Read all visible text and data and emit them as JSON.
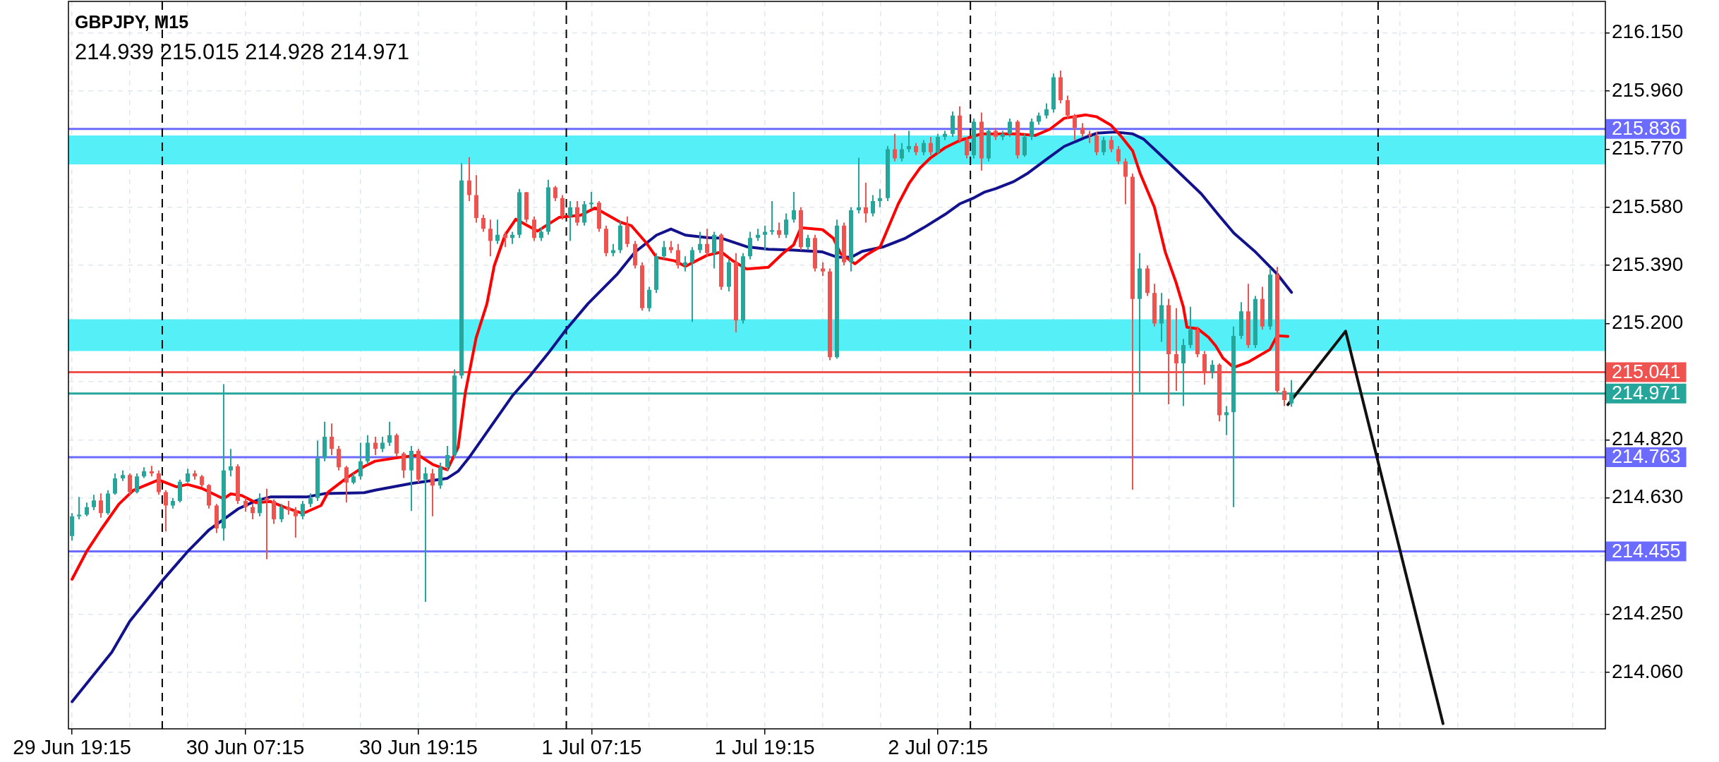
{
  "chart_data": {
    "type": "candlestick",
    "title": "GBPJPY, M15",
    "subtitle": "214.939 215.015 214.928 214.971",
    "x": [
      "--06-29T19:15",
      "--06-29T19:45",
      "--06-29T20:15",
      "--06-29T20:45",
      "--06-29T21:15",
      "--06-29T21:45",
      "--06-29T22:15",
      "--06-29T22:45",
      "--06-29T23:15",
      "--06-29T23:45",
      "--06-30T00:15",
      "--06-30T00:45",
      "--06-30T01:15",
      "--06-30T01:45",
      "--06-30T02:15",
      "--06-30T02:45",
      "--06-30T03:15",
      "--06-30T03:45",
      "--06-30T04:15",
      "--06-30T04:45",
      "--06-30T05:15",
      "--06-30T05:45",
      "--06-30T06:15",
      "--06-30T06:45",
      "--06-30T07:15",
      "--06-30T07:45",
      "--06-30T08:15",
      "--06-30T08:45",
      "--06-30T09:15",
      "--06-30T09:45",
      "--06-30T10:15",
      "--06-30T10:45",
      "--06-30T11:15",
      "--06-30T11:45",
      "--06-30T12:15",
      "--06-30T12:45",
      "--06-30T13:15",
      "--06-30T13:45",
      "--06-30T14:15",
      "--06-30T14:45",
      "--06-30T15:15",
      "--06-30T15:45",
      "--06-30T16:15",
      "--06-30T16:45",
      "--06-30T17:15",
      "--06-30T17:45",
      "--06-30T18:15",
      "--06-30T18:45",
      "--06-30T19:15",
      "--06-30T19:45",
      "--06-30T20:15",
      "--06-30T20:45",
      "--06-30T21:15",
      "--06-30T21:45",
      "--06-30T22:15",
      "--06-30T22:45",
      "--06-30T23:15",
      "--06-30T23:45",
      "--07-01T00:15",
      "--07-01T00:45",
      "--07-01T01:15",
      "--07-01T01:45",
      "--07-01T02:15",
      "--07-01T02:45",
      "--07-01T03:15",
      "--07-01T03:45",
      "--07-01T04:15",
      "--07-01T04:45",
      "--07-01T05:15",
      "--07-01T05:45",
      "--07-01T06:15",
      "--07-01T06:45",
      "--07-01T07:15",
      "--07-01T07:45",
      "--07-01T08:15",
      "--07-01T08:45",
      "--07-01T09:15",
      "--07-01T09:45",
      "--07-01T10:15",
      "--07-01T10:45",
      "--07-01T11:15",
      "--07-01T11:45",
      "--07-01T12:15",
      "--07-01T12:45",
      "--07-01T13:15",
      "--07-01T13:45",
      "--07-01T14:15",
      "--07-01T14:45",
      "--07-01T15:15",
      "--07-01T15:45",
      "--07-01T16:15",
      "--07-01T16:45",
      "--07-01T17:15",
      "--07-01T17:45",
      "--07-01T18:15",
      "--07-01T18:45",
      "--07-01T19:15",
      "--07-01T19:45",
      "--07-01T20:15",
      "--07-01T20:45",
      "--07-01T21:15",
      "--07-01T21:45",
      "--07-01T22:15",
      "--07-01T22:45",
      "--07-01T23:15",
      "--07-01T23:45",
      "--07-02T00:15",
      "--07-02T00:45",
      "--07-02T01:15",
      "--07-02T01:45",
      "--07-02T02:15",
      "--07-02T02:45",
      "--07-02T03:15",
      "--07-02T03:45",
      "--07-02T04:15",
      "--07-02T04:45",
      "--07-02T05:15",
      "--07-02T05:45",
      "--07-02T06:15",
      "--07-02T06:45",
      "--07-02T07:15",
      "--07-02T07:45",
      "--07-02T08:15",
      "--07-02T08:45",
      "--07-02T09:15",
      "--07-02T09:45",
      "--07-02T10:15",
      "--07-02T10:45",
      "--07-02T11:15",
      "--07-02T11:45",
      "--07-02T12:15",
      "--07-02T12:45",
      "--07-02T13:15",
      "--07-02T13:45",
      "--07-02T14:15",
      "--07-02T14:45",
      "--07-02T15:15",
      "--07-02T15:45",
      "--07-02T16:15",
      "--07-02T16:45",
      "--07-02T17:15",
      "--07-02T17:45",
      "--07-02T18:15",
      "--07-02T18:45",
      "--07-02T19:15",
      "--07-02T19:45",
      "--07-02T20:15",
      "--07-02T20:45",
      "--07-02T21:15",
      "--07-02T21:45",
      "--07-02T22:15",
      "--07-02T22:45",
      "--07-02T23:15",
      "--07-02T23:45",
      "--07-03T00:15",
      "--07-03T00:45",
      "--07-03T01:15",
      "--07-03T01:45",
      "--07-03T02:15",
      "--07-03T02:45",
      "--07-03T03:15",
      "--07-03T03:45",
      "--07-03T04:15",
      "--07-03T04:45",
      "--07-03T05:15",
      "--07-03T05:45",
      "--07-03T06:15",
      "--07-03T06:45",
      "--07-03T07:15",
      "--07-03T07:45"
    ],
    "ohlc": [
      [
        214.505,
        214.58,
        214.49,
        214.57
      ],
      [
        214.57,
        214.633,
        214.56,
        214.575
      ],
      [
        214.575,
        214.615,
        214.57,
        214.6
      ],
      [
        214.6,
        214.64,
        214.59,
        214.622
      ],
      [
        214.622,
        214.645,
        214.565,
        214.58
      ],
      [
        214.58,
        214.655,
        214.575,
        214.644
      ],
      [
        214.644,
        214.71,
        214.64,
        214.694
      ],
      [
        214.694,
        214.72,
        214.685,
        214.705
      ],
      [
        214.705,
        214.71,
        214.64,
        214.649
      ],
      [
        214.649,
        214.71,
        214.645,
        214.7
      ],
      [
        214.7,
        214.73,
        214.695,
        214.717
      ],
      [
        214.717,
        214.735,
        214.7,
        214.71
      ],
      [
        214.71,
        214.72,
        214.64,
        214.649
      ],
      [
        214.649,
        214.655,
        214.521,
        214.605
      ],
      [
        214.605,
        214.63,
        214.595,
        214.62
      ],
      [
        214.62,
        214.69,
        214.615,
        214.683
      ],
      [
        214.683,
        214.725,
        214.68,
        214.71
      ],
      [
        214.71,
        214.72,
        214.69,
        214.7
      ],
      [
        214.7,
        214.705,
        214.665,
        214.672
      ],
      [
        214.672,
        214.675,
        214.595,
        214.605
      ],
      [
        214.605,
        214.61,
        214.515,
        214.53
      ],
      [
        214.53,
        215.002,
        214.49,
        214.72
      ],
      [
        214.72,
        214.79,
        214.7,
        214.733
      ],
      [
        214.733,
        214.74,
        214.61,
        214.62
      ],
      [
        214.62,
        214.63,
        214.585,
        214.6
      ],
      [
        214.6,
        214.61,
        214.56,
        214.58
      ],
      [
        214.58,
        214.645,
        214.57,
        214.63
      ],
      [
        214.63,
        214.66,
        214.43,
        214.62
      ],
      [
        214.62,
        214.625,
        214.545,
        214.56
      ],
      [
        214.56,
        214.61,
        214.55,
        214.6
      ],
      [
        214.6,
        214.62,
        214.575,
        214.59
      ],
      [
        214.59,
        214.6,
        214.5,
        214.57
      ],
      [
        214.57,
        214.62,
        214.56,
        214.61
      ],
      [
        214.61,
        214.645,
        214.6,
        214.63
      ],
      [
        214.63,
        214.817,
        214.62,
        214.76
      ],
      [
        214.76,
        214.879,
        214.75,
        214.83
      ],
      [
        214.83,
        214.873,
        214.77,
        214.79
      ],
      [
        214.79,
        214.8,
        214.72,
        214.73
      ],
      [
        214.73,
        214.735,
        214.615,
        214.68
      ],
      [
        214.68,
        214.71,
        214.675,
        214.7
      ],
      [
        214.7,
        214.81,
        214.69,
        214.75
      ],
      [
        214.75,
        214.835,
        214.74,
        214.81
      ],
      [
        214.81,
        214.83,
        214.77,
        214.79
      ],
      [
        214.79,
        214.83,
        214.78,
        214.81
      ],
      [
        214.81,
        214.879,
        214.8,
        214.835
      ],
      [
        214.835,
        214.84,
        214.765,
        214.775
      ],
      [
        214.775,
        214.78,
        214.695,
        214.72
      ],
      [
        214.72,
        214.8,
        214.587,
        214.784
      ],
      [
        214.784,
        214.79,
        214.68,
        214.69
      ],
      [
        214.69,
        214.73,
        214.29,
        214.71
      ],
      [
        214.71,
        214.725,
        214.57,
        214.67
      ],
      [
        214.67,
        214.745,
        214.66,
        214.73
      ],
      [
        214.73,
        214.8,
        214.72,
        214.77
      ],
      [
        214.77,
        215.05,
        214.76,
        215.03
      ],
      [
        215.03,
        215.724,
        215.02,
        215.668
      ],
      [
        215.668,
        215.744,
        215.6,
        215.62
      ],
      [
        215.62,
        215.685,
        215.53,
        215.545
      ],
      [
        215.545,
        215.555,
        215.5,
        215.51
      ],
      [
        215.51,
        215.54,
        215.42,
        215.47
      ],
      [
        215.47,
        215.54,
        215.46,
        215.49
      ],
      [
        215.49,
        215.5,
        215.45,
        215.48
      ],
      [
        215.48,
        215.5,
        215.46,
        215.49
      ],
      [
        215.49,
        215.64,
        215.48,
        215.629
      ],
      [
        215.629,
        215.63,
        215.53,
        215.54
      ],
      [
        215.54,
        215.55,
        215.47,
        215.48
      ],
      [
        215.48,
        215.515,
        215.47,
        215.5
      ],
      [
        215.5,
        215.67,
        215.49,
        215.645
      ],
      [
        215.645,
        215.65,
        215.6,
        215.61
      ],
      [
        215.61,
        215.62,
        215.54,
        215.55
      ],
      [
        215.55,
        215.6,
        215.47,
        215.58
      ],
      [
        215.58,
        215.6,
        215.52,
        215.53
      ],
      [
        215.53,
        215.6,
        215.52,
        215.59
      ],
      [
        215.59,
        215.63,
        215.575,
        215.595
      ],
      [
        215.595,
        215.6,
        215.5,
        215.51
      ],
      [
        215.51,
        215.52,
        215.42,
        215.43
      ],
      [
        215.43,
        215.46,
        215.42,
        215.44
      ],
      [
        215.44,
        215.535,
        215.43,
        215.52
      ],
      [
        215.52,
        215.55,
        215.45,
        215.46
      ],
      [
        215.46,
        215.47,
        215.38,
        215.39
      ],
      [
        215.39,
        215.4,
        215.242,
        215.25
      ],
      [
        215.25,
        215.32,
        215.24,
        215.31
      ],
      [
        215.31,
        215.43,
        215.3,
        215.42
      ],
      [
        215.42,
        215.47,
        215.41,
        215.45
      ],
      [
        215.45,
        215.47,
        215.43,
        215.44
      ],
      [
        215.44,
        215.46,
        215.38,
        215.39
      ],
      [
        215.39,
        215.42,
        215.37,
        215.4
      ],
      [
        215.4,
        215.45,
        215.205,
        215.44
      ],
      [
        215.44,
        215.5,
        215.43,
        215.46
      ],
      [
        215.46,
        215.51,
        215.42,
        215.43
      ],
      [
        215.43,
        215.5,
        215.38,
        215.49
      ],
      [
        215.49,
        215.495,
        215.31,
        215.32
      ],
      [
        215.32,
        215.41,
        215.305,
        215.4
      ],
      [
        215.4,
        215.43,
        215.171,
        215.21
      ],
      [
        215.21,
        215.43,
        215.2,
        215.42
      ],
      [
        215.42,
        215.5,
        215.41,
        215.48
      ],
      [
        215.48,
        215.51,
        215.47,
        215.49
      ],
      [
        215.49,
        215.52,
        215.44,
        215.5
      ],
      [
        215.5,
        215.6,
        215.49,
        215.505
      ],
      [
        215.505,
        215.53,
        215.48,
        215.49
      ],
      [
        215.49,
        215.56,
        215.48,
        215.54
      ],
      [
        215.54,
        215.63,
        215.53,
        215.57
      ],
      [
        215.57,
        215.58,
        215.44,
        215.45
      ],
      [
        215.45,
        215.49,
        215.44,
        215.48
      ],
      [
        215.48,
        215.49,
        215.37,
        215.38
      ],
      [
        215.38,
        215.4,
        215.355,
        215.37
      ],
      [
        215.37,
        215.38,
        215.08,
        215.09
      ],
      [
        215.09,
        215.54,
        215.085,
        215.52
      ],
      [
        215.52,
        215.53,
        215.39,
        215.4
      ],
      [
        215.4,
        215.58,
        215.37,
        215.57
      ],
      [
        215.57,
        215.742,
        215.56,
        215.58
      ],
      [
        215.58,
        215.66,
        215.53,
        215.56
      ],
      [
        215.56,
        215.62,
        215.55,
        215.6
      ],
      [
        215.6,
        215.64,
        215.58,
        215.61
      ],
      [
        215.61,
        215.78,
        215.6,
        215.77
      ],
      [
        215.77,
        215.82,
        215.73,
        215.74
      ],
      [
        215.74,
        215.79,
        215.73,
        215.77
      ],
      [
        215.77,
        215.83,
        215.76,
        215.78
      ],
      [
        215.78,
        215.79,
        215.75,
        215.76
      ],
      [
        215.76,
        215.8,
        215.75,
        215.79
      ],
      [
        215.79,
        215.81,
        215.75,
        215.76
      ],
      [
        215.76,
        215.82,
        215.755,
        215.81
      ],
      [
        215.81,
        215.83,
        215.8,
        215.82
      ],
      [
        215.82,
        215.893,
        215.81,
        215.88
      ],
      [
        215.88,
        215.91,
        215.79,
        215.8
      ],
      [
        215.8,
        215.81,
        215.74,
        215.75
      ],
      [
        215.75,
        215.87,
        215.74,
        215.86
      ],
      [
        215.86,
        215.89,
        215.7,
        215.74
      ],
      [
        215.74,
        215.84,
        215.73,
        215.83
      ],
      [
        215.83,
        215.84,
        215.8,
        215.81
      ],
      [
        215.81,
        215.83,
        215.8,
        215.82
      ],
      [
        215.82,
        215.87,
        215.81,
        215.86
      ],
      [
        215.86,
        215.865,
        215.74,
        215.75
      ],
      [
        215.75,
        215.82,
        215.745,
        215.81
      ],
      [
        215.81,
        215.87,
        215.8,
        215.86
      ],
      [
        215.86,
        215.89,
        215.85,
        215.88
      ],
      [
        215.88,
        215.92,
        215.87,
        215.9
      ],
      [
        215.9,
        216.017,
        215.89,
        216.005
      ],
      [
        216.005,
        216.027,
        215.92,
        215.93
      ],
      [
        215.93,
        215.945,
        215.87,
        215.88
      ],
      [
        215.88,
        215.885,
        215.8,
        215.84
      ],
      [
        215.84,
        215.855,
        215.81,
        215.82
      ],
      [
        215.82,
        215.83,
        215.79,
        215.815
      ],
      [
        215.815,
        215.827,
        215.75,
        215.76
      ],
      [
        215.76,
        215.81,
        215.75,
        215.8
      ],
      [
        215.8,
        215.812,
        215.76,
        215.77
      ],
      [
        215.77,
        215.78,
        215.72,
        215.73
      ],
      [
        215.73,
        215.74,
        215.59,
        215.68
      ],
      [
        215.68,
        215.69,
        214.657,
        215.28
      ],
      [
        215.28,
        215.43,
        214.976,
        215.38
      ],
      [
        215.38,
        215.39,
        215.29,
        215.3
      ],
      [
        215.3,
        215.33,
        215.19,
        215.2
      ],
      [
        215.2,
        215.3,
        215.14,
        215.26
      ],
      [
        215.26,
        215.28,
        214.936,
        215.1
      ],
      [
        215.1,
        215.25,
        214.98,
        215.07
      ],
      [
        215.07,
        215.15,
        214.93,
        215.13
      ],
      [
        215.13,
        215.255,
        215.12,
        215.18
      ],
      [
        215.18,
        215.19,
        215.09,
        215.1
      ],
      [
        215.1,
        215.11,
        215.0,
        215.04
      ],
      [
        215.04,
        215.08,
        215.02,
        215.065
      ],
      [
        215.065,
        215.07,
        214.88,
        214.9
      ],
      [
        214.9,
        214.93,
        214.835,
        214.91
      ],
      [
        214.91,
        215.19,
        214.6,
        215.16
      ],
      [
        215.16,
        215.27,
        215.15,
        215.24
      ],
      [
        215.24,
        215.33,
        215.12,
        215.13
      ],
      [
        215.13,
        215.29,
        215.12,
        215.28
      ],
      [
        215.28,
        215.32,
        215.18,
        215.19
      ],
      [
        215.19,
        215.38,
        215.18,
        215.36
      ],
      [
        215.36,
        215.385,
        214.97,
        214.98
      ],
      [
        214.98,
        214.99,
        214.93,
        214.95
      ],
      [
        214.939,
        215.015,
        214.928,
        214.971
      ]
    ],
    "colors": [
      "#26a69a",
      "#26a69a",
      "#26a69a",
      "#26a69a",
      "#ef5350",
      "#26a69a",
      "#26a69a",
      "#26a69a",
      "#ef5350",
      "#26a69a",
      "#26a69a",
      "#ef5350",
      "#ef5350",
      "#ef5350",
      "#26a69a",
      "#26a69a",
      "#26a69a",
      "#ef5350",
      "#ef5350",
      "#ef5350",
      "#ef5350",
      "#26a69a",
      "#26a69a",
      "#ef5350",
      "#ef5350",
      "#ef5350",
      "#26a69a",
      "#ef5350",
      "#ef5350",
      "#26a69a",
      "#ef5350",
      "#ef5350",
      "#26a69a",
      "#26a69a",
      "#26a69a",
      "#26a69a",
      "#ef5350",
      "#ef5350",
      "#ef5350",
      "#26a69a",
      "#26a69a",
      "#26a69a",
      "#ef5350",
      "#26a69a",
      "#26a69a",
      "#ef5350",
      "#ef5350",
      "#26a69a",
      "#ef5350",
      "#26a69a",
      "#ef5350",
      "#26a69a",
      "#26a69a",
      "#26a69a",
      "#26a69a",
      "#ef5350",
      "#ef5350",
      "#ef5350",
      "#ef5350",
      "#26a69a",
      "#ef5350",
      "#26a69a",
      "#26a69a",
      "#ef5350",
      "#ef5350",
      "#26a69a",
      "#26a69a",
      "#ef5350",
      "#ef5350",
      "#26a69a",
      "#ef5350",
      "#26a69a",
      "#26a69a",
      "#ef5350",
      "#ef5350",
      "#26a69a",
      "#26a69a",
      "#ef5350",
      "#ef5350",
      "#ef5350",
      "#26a69a",
      "#26a69a",
      "#26a69a",
      "#ef5350",
      "#ef5350",
      "#26a69a",
      "#26a69a",
      "#26a69a",
      "#ef5350",
      "#26a69a",
      "#ef5350",
      "#26a69a",
      "#ef5350",
      "#26a69a",
      "#26a69a",
      "#26a69a",
      "#26a69a",
      "#26a69a",
      "#ef5350",
      "#26a69a",
      "#26a69a",
      "#ef5350",
      "#26a69a",
      "#ef5350",
      "#ef5350",
      "#ef5350",
      "#26a69a",
      "#ef5350",
      "#26a69a",
      "#26a69a",
      "#ef5350",
      "#26a69a",
      "#26a69a",
      "#26a69a",
      "#ef5350",
      "#26a69a",
      "#26a69a",
      "#ef5350",
      "#26a69a",
      "#ef5350",
      "#26a69a",
      "#26a69a",
      "#26a69a",
      "#ef5350",
      "#ef5350",
      "#26a69a",
      "#ef5350",
      "#26a69a",
      "#ef5350",
      "#26a69a",
      "#26a69a",
      "#ef5350",
      "#26a69a",
      "#26a69a",
      "#26a69a",
      "#26a69a",
      "#26a69a",
      "#ef5350",
      "#ef5350",
      "#ef5350",
      "#ef5350",
      "#ef5350",
      "#ef5350",
      "#26a69a",
      "#ef5350",
      "#ef5350",
      "#ef5350",
      "#ef5350",
      "#26a69a",
      "#ef5350",
      "#ef5350",
      "#26a69a",
      "#ef5350",
      "#ef5350",
      "#26a69a",
      "#26a69a",
      "#ef5350",
      "#ef5350",
      "#26a69a",
      "#ef5350",
      "#26a69a",
      "#26a69a",
      "#26a69a",
      "#ef5350",
      "#26a69a",
      "#ef5350",
      "#26a69a",
      "#ef5350",
      "#ef5350",
      "#26a69a"
    ],
    "series": [
      {
        "type": "line",
        "color": "#ff0000",
        "x": [
          "--06-29T19:15",
          "--06-29T20:15",
          "--06-29T21:15",
          "--06-29T22:30",
          "--06-29T23:30",
          "--06-30T01:15",
          "--06-30T02:30",
          "--06-30T03:15",
          "--06-30T04:15",
          "--06-30T05:45",
          "--06-30T06:15",
          "--06-30T07:00",
          "--06-30T08:00",
          "--06-30T09:00",
          "--06-30T10:00",
          "--06-30T11:15",
          "--06-30T12:30",
          "--06-30T13:00",
          "--06-30T14:15",
          "--06-30T15:30",
          "--06-30T16:15",
          "--06-30T17:45",
          "--06-30T19:15",
          "--06-30T20:15",
          "--06-30T21:15",
          "--06-30T22:00",
          "--06-30T22:30",
          "--06-30T23:15",
          "--07-01T00:00",
          "--07-01T00:30",
          "--07-01T01:15",
          "--07-01T02:00",
          "--07-01T02:30",
          "--07-01T03:30",
          "--07-01T05:00",
          "--07-01T06:30",
          "--07-01T07:30",
          "--07-01T09:15",
          "--07-01T10:00",
          "--07-01T11:00",
          "--07-01T11:45",
          "--07-01T13:00",
          "--07-01T13:45",
          "--07-01T15:15",
          "--07-01T16:15",
          "--07-01T17:00",
          "--07-01T18:00",
          "--07-01T19:30",
          "--07-01T20:30",
          "--07-01T21:15",
          "--07-01T21:45",
          "--07-01T23:15",
          "--07-02T00:00",
          "--07-02T00:30",
          "--07-02T01:30",
          "--07-02T02:15",
          "--07-02T03:15",
          "--07-02T04:00",
          "--07-02T04:30",
          "--07-02T05:15",
          "--07-02T06:00",
          "--07-02T06:45",
          "--07-02T07:45",
          "--07-02T08:45",
          "--07-02T10:15",
          "--07-02T12:45",
          "--07-02T14:00",
          "--07-02T15:00",
          "--07-02T16:00",
          "--07-02T17:30",
          "--07-02T18:15",
          "--07-02T19:15",
          "--07-02T20:00",
          "--07-02T20:45",
          "--07-02T21:15",
          "--07-02T22:15",
          "--07-02T23:00",
          "--07-02T23:45",
          "--07-03T00:15",
          "--07-03T00:30",
          "--07-03T01:15",
          "--07-03T02:00",
          "--07-03T02:30",
          "--07-03T03:00",
          "--07-03T03:45",
          "--07-03T04:45",
          "--07-03T06:15",
          "--07-03T06:45",
          "--07-03T07:30"
        ],
        "values": [
          214.364,
          214.454,
          214.526,
          214.61,
          214.655,
          214.689,
          214.666,
          214.674,
          214.661,
          214.627,
          214.643,
          214.638,
          214.614,
          214.618,
          214.599,
          214.579,
          214.605,
          214.649,
          214.694,
          214.733,
          214.75,
          214.761,
          214.77,
          214.739,
          214.722,
          214.795,
          214.974,
          215.153,
          215.265,
          215.388,
          215.489,
          215.541,
          215.528,
          215.502,
          215.547,
          215.554,
          215.578,
          215.531,
          215.52,
          215.466,
          215.416,
          215.405,
          215.387,
          215.423,
          215.434,
          215.406,
          215.378,
          215.384,
          215.429,
          215.457,
          215.513,
          215.507,
          215.479,
          215.429,
          215.395,
          215.423,
          215.451,
          215.535,
          215.591,
          215.658,
          215.708,
          215.742,
          215.775,
          215.798,
          215.82,
          215.82,
          215.815,
          215.835,
          215.871,
          215.882,
          215.876,
          215.848,
          215.809,
          215.764,
          215.692,
          215.58,
          215.434,
          215.334,
          215.255,
          215.188,
          215.183,
          215.155,
          215.127,
          215.087,
          215.056,
          215.074,
          215.115,
          215.16,
          215.158
        ]
      },
      {
        "type": "line",
        "color": "#12128c",
        "x": [
          "--06-29T19:15",
          "--06-29T22:00",
          "--06-29T23:15",
          "--06-30T01:30",
          "--06-30T03:15",
          "--06-30T04:45",
          "--06-30T06:45",
          "--06-30T08:00",
          "--06-30T09:00",
          "--06-30T11:30",
          "--06-30T12:45",
          "--06-30T15:30",
          "--06-30T16:15",
          "--06-30T18:45",
          "--06-30T21:15",
          "--06-30T22:00",
          "--06-30T22:45",
          "--07-01T00:00",
          "--07-01T01:45",
          "--07-01T03:00",
          "--07-01T04:15",
          "--07-01T05:30",
          "--07-01T07:00",
          "--07-01T09:00",
          "--07-01T10:15",
          "--07-01T11:45",
          "--07-01T12:45",
          "--07-01T13:45",
          "--07-01T15:15",
          "--07-01T16:15",
          "--07-01T18:00",
          "--07-01T19:30",
          "--07-01T21:15",
          "--07-01T23:15",
          "--07-02T00:15",
          "--07-02T01:15",
          "--07-02T02:00",
          "--07-02T03:30",
          "--07-02T05:00",
          "--07-02T06:15",
          "--07-02T07:45",
          "--07-02T08:45",
          "--07-02T09:45",
          "--07-02T10:30",
          "--07-02T11:15",
          "--07-02T12:30",
          "--07-02T13:30",
          "--07-02T14:45",
          "--07-02T16:00",
          "--07-02T17:30",
          "--07-02T18:15",
          "--07-02T19:30",
          "--07-02T20:45",
          "--07-02T21:30",
          "--07-02T22:30",
          "--07-02T23:45",
          "--07-03T01:30",
          "--07-03T02:45",
          "--07-03T03:45",
          "--07-03T05:15",
          "--07-03T06:45",
          "--07-03T07:45"
        ],
        "values": [
          213.964,
          214.125,
          214.227,
          214.359,
          214.454,
          214.526,
          214.594,
          214.621,
          214.633,
          214.633,
          214.644,
          214.647,
          214.655,
          214.677,
          214.694,
          214.717,
          214.761,
          214.845,
          214.963,
          215.03,
          215.103,
          215.181,
          215.265,
          215.36,
          215.433,
          215.489,
          215.509,
          215.489,
          215.481,
          215.479,
          215.451,
          215.443,
          215.44,
          215.434,
          215.417,
          215.417,
          215.436,
          215.451,
          215.479,
          215.513,
          215.557,
          215.591,
          215.611,
          215.63,
          215.641,
          215.664,
          215.692,
          215.736,
          215.779,
          215.809,
          215.822,
          215.826,
          215.82,
          215.803,
          215.759,
          215.703,
          215.624,
          215.552,
          215.496,
          215.434,
          215.362,
          215.302
        ]
      },
      {
        "type": "line",
        "color": "#111111",
        "x": [
          "--07-03T07:30",
          "--07-03T11:30",
          "--07-03T18:15"
        ],
        "values": [
          214.935,
          215.175,
          213.892
        ]
      }
    ],
    "xlim": [
      "--06-29T19:00",
      "--07-04T05:30"
    ],
    "xticks": [
      {
        "value": "--06-29T19:15",
        "label": "29 Jun 19:15"
      },
      {
        "value": "--06-29T23:15",
        "label": null
      },
      {
        "value": "--06-30T03:15",
        "label": null
      },
      {
        "value": "--06-30T07:15",
        "label": "30 Jun 07:15"
      },
      {
        "value": "--06-30T11:15",
        "label": null
      },
      {
        "value": "--06-30T15:15",
        "label": null
      },
      {
        "value": "--06-30T19:15",
        "label": "30 Jun 19:15"
      },
      {
        "value": "--06-30T23:15",
        "label": null
      },
      {
        "value": "--07-01T03:15",
        "label": null
      },
      {
        "value": "--07-01T07:15",
        "label": "1 Jul 07:15"
      },
      {
        "value": "--07-01T11:15",
        "label": null
      },
      {
        "value": "--07-01T15:15",
        "label": null
      },
      {
        "value": "--07-01T19:15",
        "label": "1 Jul 19:15"
      },
      {
        "value": "--07-01T23:15",
        "label": null
      },
      {
        "value": "--07-02T03:15",
        "label": null
      },
      {
        "value": "--07-02T07:15",
        "label": "2 Jul 07:15"
      },
      {
        "value": "--07-02T11:15",
        "label": null
      },
      {
        "value": "--07-02T15:15",
        "label": null
      },
      {
        "value": "--07-02T19:15",
        "label": null
      },
      {
        "value": "--07-02T23:15",
        "label": null
      },
      {
        "value": "--07-03T03:15",
        "label": null
      },
      {
        "value": "--07-03T07:15",
        "label": null
      },
      {
        "value": "--07-03T11:15",
        "label": null
      },
      {
        "value": "--07-03T15:15",
        "label": null
      },
      {
        "value": "--07-03T19:15",
        "label": null
      },
      {
        "value": "--07-03T23:15",
        "label": null
      },
      {
        "value": "--07-04T03:15",
        "label": null
      }
    ],
    "ylim": [
      213.875,
      216.253
    ],
    "yticks": [
      {
        "value": 216.15,
        "label": "216.150"
      },
      {
        "value": 215.96,
        "label": "215.960"
      },
      {
        "value": 215.77,
        "label": "215.770"
      },
      {
        "value": 215.58,
        "label": "215.580"
      },
      {
        "value": 215.39,
        "label": "215.390"
      },
      {
        "value": 215.2,
        "label": "215.200"
      },
      {
        "value": 215.01,
        "label": null
      },
      {
        "value": 214.82,
        "label": "214.820"
      },
      {
        "value": 214.63,
        "label": "214.630"
      },
      {
        "value": 214.44,
        "label": null
      },
      {
        "value": 214.25,
        "label": "214.250"
      },
      {
        "value": 214.06,
        "label": "214.060"
      }
    ],
    "ref_lines": [
      {
        "axis": "y",
        "value": 215.836,
        "label": "215.836",
        "color": "#6b6bff"
      },
      {
        "axis": "y",
        "value": 215.041,
        "label": "215.041",
        "color": "#ef5350"
      },
      {
        "axis": "y",
        "value": 214.971,
        "label": "214.971",
        "color": "#26a69a"
      },
      {
        "axis": "y",
        "value": 214.763,
        "label": "214.763",
        "color": "#6b6bff"
      },
      {
        "axis": "y",
        "value": 214.455,
        "label": "214.455",
        "color": "#6b6bff"
      },
      {
        "axis": "x",
        "value": "--06-30T01:30",
        "color": "#000000",
        "line_style": "dashed"
      },
      {
        "axis": "x",
        "value": "--07-01T05:30",
        "color": "#000000",
        "line_style": "dashed"
      },
      {
        "axis": "x",
        "value": "--07-02T09:30",
        "color": "#000000",
        "line_style": "dashed"
      },
      {
        "axis": "x",
        "value": "--07-03T13:45",
        "color": "#000000",
        "line_style": "dashed"
      }
    ],
    "bands": [
      {
        "axis": "y",
        "from": 215.72,
        "to": 215.815,
        "color": "#55f0f7"
      },
      {
        "axis": "y",
        "from": 215.11,
        "to": 215.214,
        "color": "#55f0f7"
      }
    ],
    "grid": true
  }
}
